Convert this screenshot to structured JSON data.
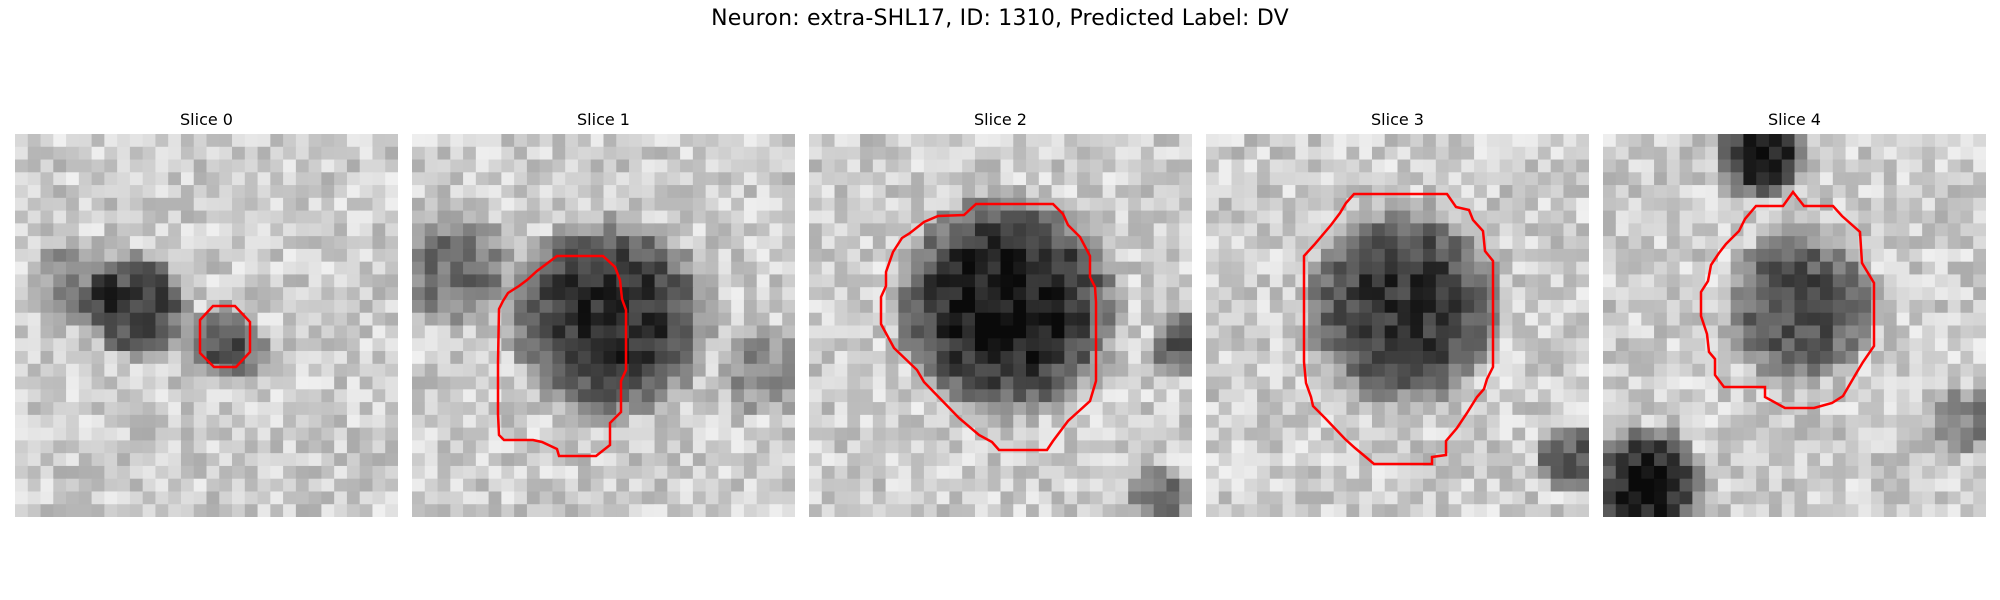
{
  "figure": {
    "title": "Neuron: extra-SHL17, ID: 1310, Predicted Label: DV"
  },
  "panels": [
    {
      "title": "Slice 0",
      "contour_color": "#ff0000"
    },
    {
      "title": "Slice 1",
      "contour_color": "#ff0000"
    },
    {
      "title": "Slice 2",
      "contour_color": "#ff0000"
    },
    {
      "title": "Slice 3",
      "contour_color": "#ff0000"
    },
    {
      "title": "Slice 4",
      "contour_color": "#ff0000"
    }
  ]
}
